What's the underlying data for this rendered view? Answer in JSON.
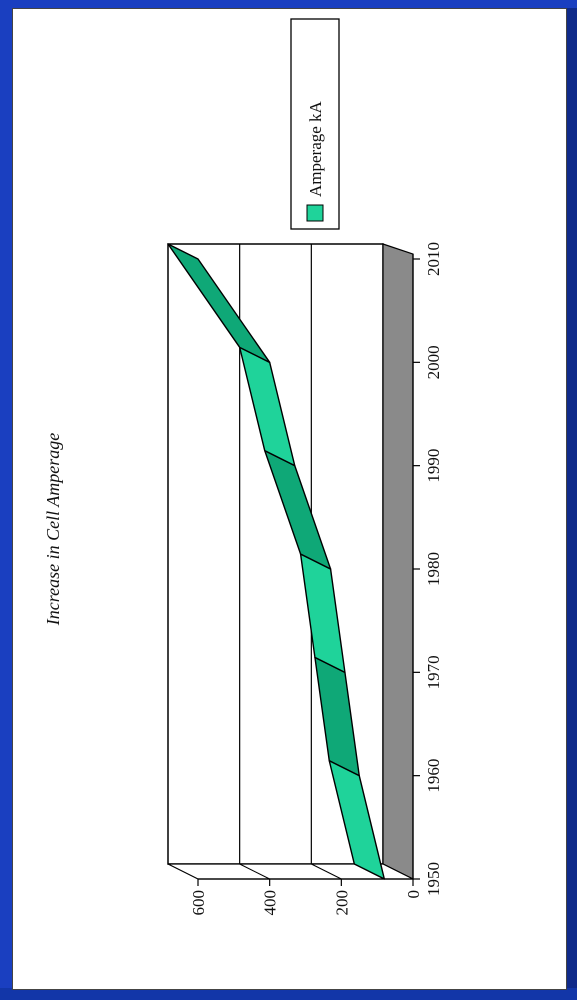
{
  "chart_data": {
    "type": "area",
    "title": "Increase in Cell Amperage",
    "xlabel": "",
    "ylabel": "",
    "categories": [
      "1950",
      "1960",
      "1970",
      "1980",
      "1990",
      "2000",
      "2010"
    ],
    "y_ticks": [
      "0",
      "200",
      "400",
      "600"
    ],
    "ylim": [
      0,
      600
    ],
    "xlim": [
      1950,
      2010
    ],
    "series": [
      {
        "name": "Amperage kA",
        "x": [
          1950,
          1960,
          1970,
          1980,
          1990,
          2000,
          2010
        ],
        "values": [
          80,
          150,
          190,
          230,
          330,
          400,
          600
        ]
      }
    ],
    "grid": true,
    "projection": "3d",
    "orientation": "rotated",
    "legend_position": "right",
    "colors": {
      "series_fill": "#1fd39a",
      "series_top": "#0fa877",
      "floor": "#8a8a8a",
      "background": "#1a3fc0",
      "grid": "#000000"
    }
  }
}
